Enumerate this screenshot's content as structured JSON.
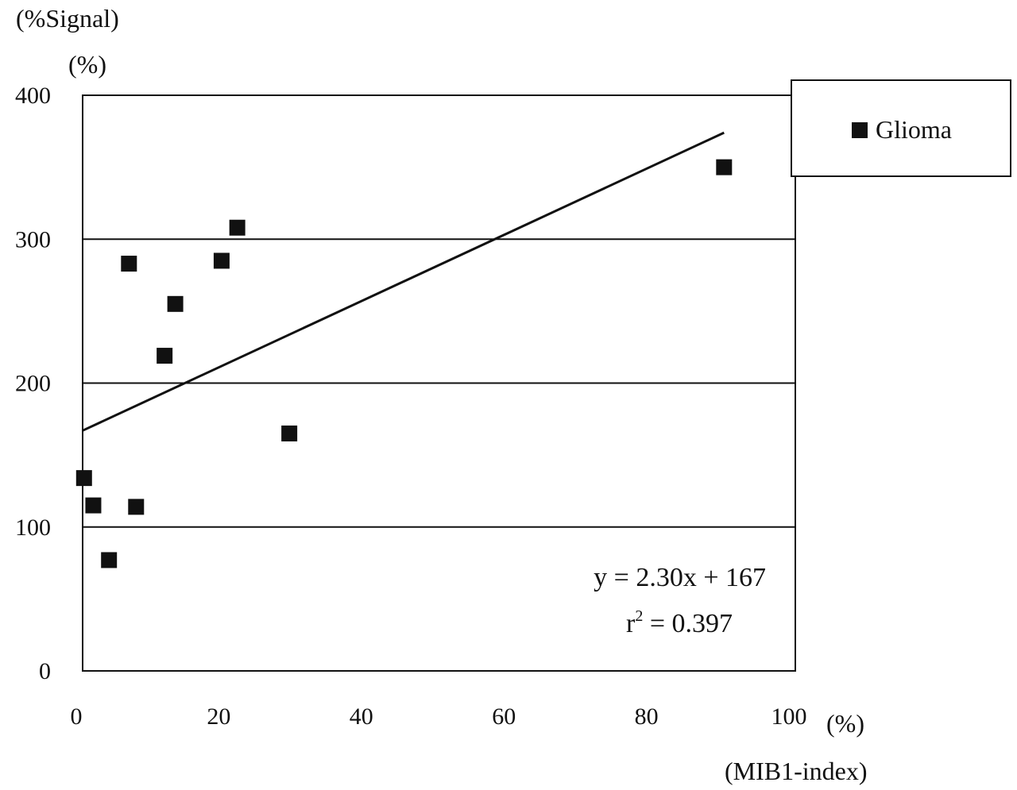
{
  "chart_data": {
    "type": "scatter",
    "y_unit_top": "(%Signal)",
    "y_unit": "(%)",
    "x_unit": "(%)",
    "x_label": "(MIB1-index)",
    "xlim": [
      0,
      100
    ],
    "ylim": [
      0,
      400
    ],
    "x_ticks": [
      "0",
      "20",
      "40",
      "60",
      "80",
      "100"
    ],
    "y_ticks": [
      "0",
      "100",
      "200",
      "300",
      "400"
    ],
    "gridlines": [
      100,
      200,
      300,
      400
    ],
    "legend": {
      "position": "top-right",
      "label": "Glioma"
    },
    "series": [
      {
        "name": "Glioma",
        "marker": "square",
        "points": [
          [
            0.2,
            134
          ],
          [
            1.5,
            115
          ],
          [
            3.7,
            77
          ],
          [
            6.5,
            283
          ],
          [
            7.5,
            114
          ],
          [
            11.5,
            219
          ],
          [
            13,
            255
          ],
          [
            19.5,
            285
          ],
          [
            21.7,
            308
          ],
          [
            29,
            165
          ],
          [
            90,
            350
          ]
        ]
      }
    ],
    "trendline": {
      "slope": 2.3,
      "intercept": 167,
      "x_range": [
        0,
        90
      ]
    },
    "equation": "y = 2.30x + 167",
    "r_squared_prefix": "r",
    "r_squared_exp": "2",
    "r_squared_value": " = 0.397"
  }
}
